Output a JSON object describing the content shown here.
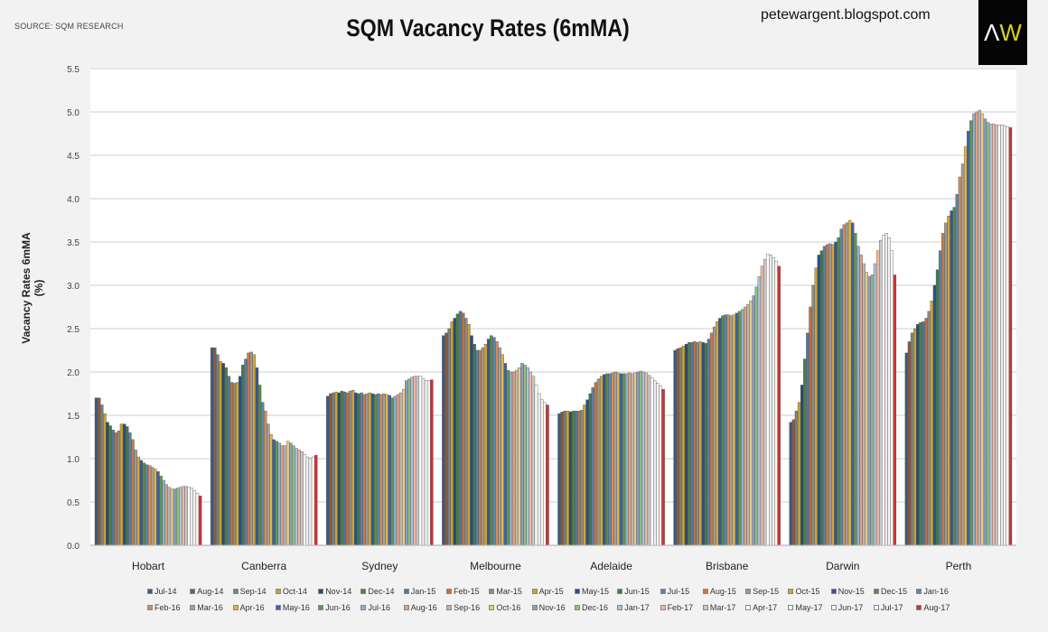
{
  "header": {
    "source": "SOURCE: SQM RESEARCH",
    "blog": "petewargent.blogspot.com",
    "logo_text": "AW"
  },
  "chart_data": {
    "type": "bar",
    "title": "SQM Vacancy Rates (6mMA)",
    "ylabel": "Vacancy Rates 6mMA (%)",
    "xlabel": "",
    "ylim": [
      0,
      5.5
    ],
    "yticks": [
      "0.0",
      "0.5",
      "1.0",
      "1.5",
      "2.0",
      "2.5",
      "3.0",
      "3.5",
      "4.0",
      "4.5",
      "5.0",
      "5.5"
    ],
    "grid": true,
    "legend_position": "bottom",
    "categories": [
      "Hobart",
      "Canberra",
      "Sydney",
      "Melbourne",
      "Adelaide",
      "Brisbane",
      "Darwin",
      "Perth"
    ],
    "series_names": [
      "Jul-14",
      "Aug-14",
      "Sep-14",
      "Oct-14",
      "Nov-14",
      "Dec-14",
      "Jan-15",
      "Feb-15",
      "Mar-15",
      "Apr-15",
      "May-15",
      "Jun-15",
      "Jul-15",
      "Aug-15",
      "Sep-15",
      "Oct-15",
      "Nov-15",
      "Dec-15",
      "Jan-16",
      "Feb-16",
      "Mar-16",
      "Apr-16",
      "May-16",
      "Jun-16",
      "Jul-16",
      "Aug-16",
      "Sep-16",
      "Oct-16",
      "Nov-16",
      "Dec-16",
      "Jan-17",
      "Feb-17",
      "Mar-17",
      "Apr-17",
      "May-17",
      "Jun-17",
      "Jul-17",
      "Aug-17"
    ],
    "series_colors": [
      "#3d5a80",
      "#8b5a3c",
      "#7a7f86",
      "#c9a227",
      "#2b4a6f",
      "#4f7f3f",
      "#4a79a5",
      "#c0703f",
      "#8b8b8b",
      "#d0a52a",
      "#2f4b8a",
      "#3f7a4a",
      "#5b7fa6",
      "#c57a4a",
      "#999999",
      "#d4a630",
      "#3a5590",
      "#5a8a45",
      "#5588b0",
      "#d98a5a",
      "#a0a0a0",
      "#e0b540",
      "#4060a8",
      "#5e9a50",
      "#8fb0d0",
      "#e0a080",
      "#b8b8b8",
      "#e8cc80",
      "#8a9cc8",
      "#8fbf80",
      "#a8c4de",
      "#f0b8a0",
      "#c8c8c8",
      "#ffffff",
      "#eeeeee",
      "#f4f4f4",
      "#fafafa",
      "#cc3333"
    ],
    "values_by_category": [
      [
        1.7,
        1.7,
        1.62,
        1.52,
        1.42,
        1.38,
        1.33,
        1.3,
        1.32,
        1.4,
        1.4,
        1.37,
        1.3,
        1.22,
        1.1,
        1.02,
        0.98,
        0.95,
        0.93,
        0.92,
        0.9,
        0.88,
        0.85,
        0.8,
        0.75,
        0.7,
        0.67,
        0.65,
        0.65,
        0.66,
        0.67,
        0.68,
        0.68,
        0.67,
        0.66,
        0.63,
        0.6,
        0.57
      ],
      [
        2.28,
        2.28,
        2.2,
        2.12,
        2.1,
        2.05,
        1.95,
        1.88,
        1.87,
        1.88,
        1.95,
        2.08,
        2.15,
        2.22,
        2.23,
        2.2,
        2.05,
        1.85,
        1.65,
        1.55,
        1.4,
        1.28,
        1.22,
        1.2,
        1.18,
        1.15,
        1.15,
        1.2,
        1.18,
        1.15,
        1.12,
        1.1,
        1.08,
        1.05,
        1.02,
        1.0,
        1.02,
        1.04
      ],
      [
        1.72,
        1.75,
        1.76,
        1.77,
        1.76,
        1.78,
        1.77,
        1.76,
        1.78,
        1.79,
        1.76,
        1.75,
        1.76,
        1.74,
        1.75,
        1.76,
        1.75,
        1.74,
        1.75,
        1.74,
        1.75,
        1.74,
        1.73,
        1.7,
        1.72,
        1.74,
        1.76,
        1.8,
        1.9,
        1.92,
        1.94,
        1.95,
        1.95,
        1.95,
        1.92,
        1.9,
        1.9,
        1.91
      ],
      [
        2.42,
        2.45,
        2.5,
        2.58,
        2.62,
        2.67,
        2.7,
        2.68,
        2.62,
        2.55,
        2.42,
        2.32,
        2.25,
        2.25,
        2.28,
        2.32,
        2.38,
        2.42,
        2.4,
        2.35,
        2.28,
        2.2,
        2.1,
        2.02,
        2.0,
        2.0,
        2.02,
        2.05,
        2.1,
        2.08,
        2.05,
        2.0,
        1.95,
        1.85,
        1.75,
        1.68,
        1.65,
        1.62
      ],
      [
        1.52,
        1.54,
        1.55,
        1.55,
        1.54,
        1.55,
        1.55,
        1.55,
        1.56,
        1.62,
        1.68,
        1.75,
        1.82,
        1.88,
        1.92,
        1.95,
        1.97,
        1.98,
        1.98,
        1.99,
        2.0,
        1.99,
        1.98,
        1.98,
        1.98,
        1.99,
        1.98,
        1.99,
        2.0,
        2.01,
        2.0,
        1.99,
        1.96,
        1.93,
        1.9,
        1.87,
        1.84,
        1.8
      ],
      [
        2.25,
        2.27,
        2.28,
        2.3,
        2.32,
        2.34,
        2.34,
        2.35,
        2.34,
        2.35,
        2.34,
        2.33,
        2.38,
        2.45,
        2.52,
        2.58,
        2.62,
        2.65,
        2.66,
        2.66,
        2.65,
        2.66,
        2.68,
        2.7,
        2.72,
        2.75,
        2.78,
        2.82,
        2.88,
        2.98,
        3.1,
        3.22,
        3.3,
        3.36,
        3.35,
        3.32,
        3.28,
        3.22
      ],
      [
        1.42,
        1.45,
        1.55,
        1.65,
        1.85,
        2.15,
        2.45,
        2.75,
        3.0,
        3.2,
        3.35,
        3.4,
        3.45,
        3.47,
        3.48,
        3.47,
        3.5,
        3.55,
        3.65,
        3.7,
        3.72,
        3.75,
        3.72,
        3.6,
        3.45,
        3.35,
        3.25,
        3.15,
        3.1,
        3.12,
        3.25,
        3.4,
        3.52,
        3.58,
        3.6,
        3.55,
        3.4,
        3.12
      ],
      [
        2.22,
        2.35,
        2.45,
        2.5,
        2.55,
        2.57,
        2.58,
        2.62,
        2.7,
        2.82,
        3.0,
        3.18,
        3.4,
        3.6,
        3.72,
        3.8,
        3.86,
        3.9,
        4.05,
        4.25,
        4.4,
        4.6,
        4.78,
        4.9,
        4.98,
        5.0,
        5.02,
        4.98,
        4.92,
        4.88,
        4.86,
        4.86,
        4.85,
        4.85,
        4.85,
        4.84,
        4.83,
        4.82
      ]
    ]
  }
}
